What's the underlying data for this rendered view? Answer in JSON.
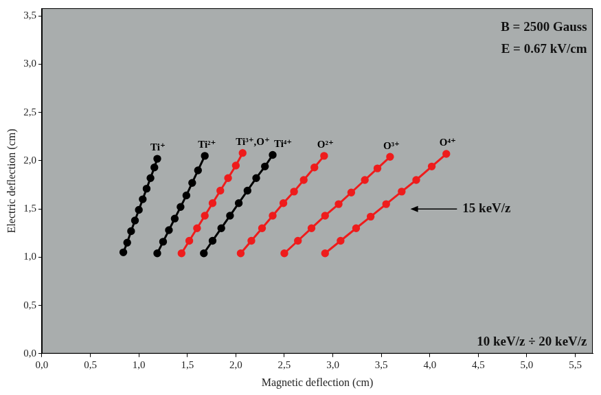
{
  "chart_data": {
    "type": "scatter",
    "x_label": "Magnetic deflection (cm)",
    "y_label": "Electric deflection (cm)",
    "xlim": [
      0,
      5.68
    ],
    "ylim": [
      0,
      3.58
    ],
    "xticks": [
      {
        "value": 0,
        "label": "0,0"
      },
      {
        "value": 0.5,
        "label": "0,5"
      },
      {
        "value": 1,
        "label": "1,0"
      },
      {
        "value": 1.5,
        "label": "1,5"
      },
      {
        "value": 2,
        "label": "2,0"
      },
      {
        "value": 2.5,
        "label": "2,5"
      },
      {
        "value": 3,
        "label": "3,0"
      },
      {
        "value": 3.5,
        "label": "3,5"
      },
      {
        "value": 4,
        "label": "4,0"
      },
      {
        "value": 4.5,
        "label": "4,5"
      },
      {
        "value": 5,
        "label": "5,0"
      },
      {
        "value": 5.5,
        "label": "5,5"
      }
    ],
    "yticks": [
      {
        "value": 0,
        "label": "0,0"
      },
      {
        "value": 0.5,
        "label": "0,5"
      },
      {
        "value": 1,
        "label": "1,0"
      },
      {
        "value": 1.5,
        "label": "1,5"
      },
      {
        "value": 2,
        "label": "2,0"
      },
      {
        "value": 2.5,
        "label": "2,5"
      },
      {
        "value": 3,
        "label": "3,0"
      },
      {
        "value": 3.5,
        "label": "3,5"
      }
    ],
    "grid": false,
    "marker": "circle",
    "line_style": "solid",
    "series": [
      {
        "name": "Ti⁺",
        "color": "#000000",
        "x": [
          0.84,
          0.88,
          0.92,
          0.96,
          1.0,
          1.04,
          1.08,
          1.12,
          1.16,
          1.19
        ],
        "values": [
          1.05,
          1.15,
          1.27,
          1.38,
          1.49,
          1.6,
          1.71,
          1.82,
          1.93,
          2.02
        ]
      },
      {
        "name": "Ti²⁺",
        "color": "#000000",
        "x": [
          1.19,
          1.25,
          1.31,
          1.37,
          1.43,
          1.49,
          1.55,
          1.61,
          1.68
        ],
        "values": [
          1.04,
          1.16,
          1.28,
          1.4,
          1.52,
          1.64,
          1.77,
          1.9,
          2.05
        ]
      },
      {
        "name": "Ti³⁺,O⁺",
        "color": "#ee1c1c",
        "x": [
          1.44,
          1.52,
          1.6,
          1.68,
          1.76,
          1.84,
          1.92,
          2.0,
          2.07
        ],
        "values": [
          1.04,
          1.17,
          1.3,
          1.43,
          1.56,
          1.69,
          1.82,
          1.95,
          2.08
        ]
      },
      {
        "name": "Ti⁴⁺",
        "color": "#000000",
        "x": [
          1.67,
          1.76,
          1.85,
          1.94,
          2.03,
          2.12,
          2.21,
          2.3,
          2.38
        ],
        "values": [
          1.04,
          1.17,
          1.3,
          1.43,
          1.56,
          1.69,
          1.82,
          1.94,
          2.06
        ]
      },
      {
        "name": "O²⁺",
        "color": "#ee1c1c",
        "x": [
          2.05,
          2.16,
          2.27,
          2.38,
          2.49,
          2.6,
          2.7,
          2.81,
          2.91
        ],
        "values": [
          1.04,
          1.17,
          1.3,
          1.43,
          1.56,
          1.68,
          1.8,
          1.93,
          2.05
        ]
      },
      {
        "name": "O³⁺",
        "color": "#ee1c1c",
        "x": [
          2.5,
          2.64,
          2.78,
          2.92,
          3.06,
          3.19,
          3.33,
          3.46,
          3.59
        ],
        "values": [
          1.04,
          1.17,
          1.3,
          1.43,
          1.55,
          1.67,
          1.8,
          1.92,
          2.04
        ]
      },
      {
        "name": "O⁴⁺",
        "color": "#ee1c1c",
        "x": [
          2.92,
          3.08,
          3.24,
          3.39,
          3.55,
          3.71,
          3.86,
          4.02,
          4.17
        ],
        "values": [
          1.04,
          1.17,
          1.3,
          1.42,
          1.55,
          1.68,
          1.8,
          1.94,
          2.07
        ]
      }
    ],
    "annotations": [
      {
        "text": "B = 2500 Gauss",
        "x": 5.62,
        "y": 3.38
      },
      {
        "text": "E = 0.67 kV/cm",
        "x": 5.62,
        "y": 3.15
      },
      {
        "text": "15 keV/z",
        "x": 4.28,
        "y": 1.5,
        "arrow_to": 3.8
      },
      {
        "text": "10 keV/z ÷ 20 keV/z",
        "x": 5.62,
        "y": 0.12
      }
    ]
  }
}
